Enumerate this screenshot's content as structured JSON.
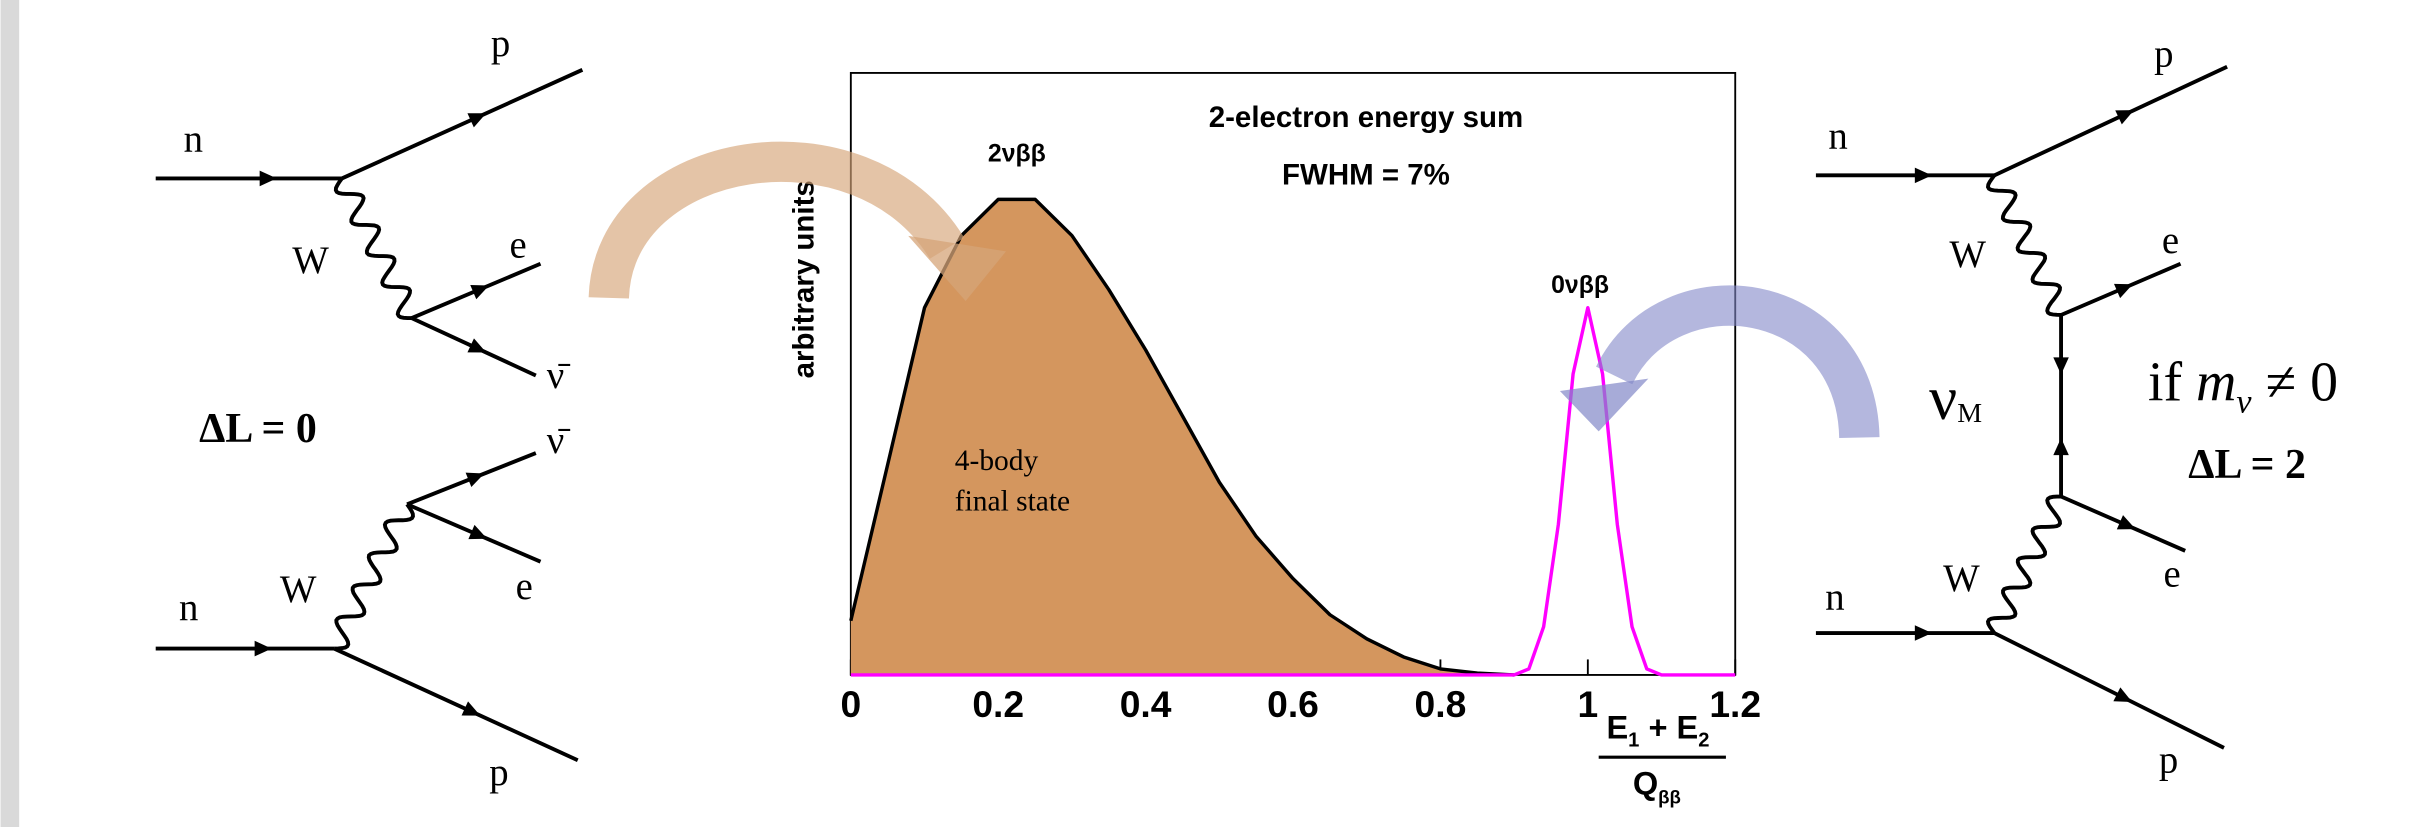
{
  "diagrams": {
    "left_top": {
      "labels": [
        "n",
        "p",
        "W",
        "e",
        "ν̄"
      ]
    },
    "left_bottom": {
      "labels": [
        "ν̄",
        "e",
        "W",
        "n",
        "p"
      ]
    },
    "left_rule": "ΔL = 0",
    "right": {
      "labels": [
        "p",
        "n",
        "W",
        "e",
        "e",
        "W",
        "n",
        "p"
      ],
      "neutrino": [
        "ν",
        "M"
      ],
      "condition": [
        "if ",
        "m",
        "ν",
        " ≠ 0"
      ],
      "rule": "ΔL = 2"
    }
  },
  "chart_data": {
    "type": "line",
    "annotations": [
      "2-electron energy sum",
      "FWHM = 7%",
      "2νββ",
      "0νββ",
      "4-body",
      "final state"
    ],
    "y_label": "arbitrary units",
    "x_label": {
      "numerator": [
        "E",
        "1",
        " + E",
        "2"
      ],
      "denominator": [
        "Q",
        "ββ"
      ]
    },
    "xlim": [
      0,
      1.2
    ],
    "xticks": [
      0,
      0.2,
      0.4,
      0.6,
      0.8,
      1,
      1.2
    ],
    "ylim": [
      0,
      1
    ],
    "series": [
      {
        "name": "2νββ",
        "color": "#000000",
        "fill": "#d4965e",
        "x": [
          0,
          0.05,
          0.1,
          0.15,
          0.2,
          0.25,
          0.3,
          0.35,
          0.4,
          0.45,
          0.5,
          0.55,
          0.6,
          0.65,
          0.7,
          0.75,
          0.8,
          0.85,
          0.9
        ],
        "values": [
          0.09,
          0.35,
          0.61,
          0.73,
          0.79,
          0.79,
          0.73,
          0.64,
          0.54,
          0.43,
          0.32,
          0.23,
          0.16,
          0.1,
          0.06,
          0.03,
          0.01,
          0.003,
          0
        ]
      },
      {
        "name": "0νββ",
        "color": "#ff00ff",
        "x": [
          0,
          0.9,
          0.92,
          0.94,
          0.96,
          0.98,
          1,
          1.02,
          1.04,
          1.06,
          1.08,
          1.1,
          1.2
        ],
        "values": [
          0,
          0,
          0.01,
          0.08,
          0.25,
          0.5,
          0.61,
          0.5,
          0.25,
          0.08,
          0.01,
          0,
          0
        ]
      }
    ]
  }
}
